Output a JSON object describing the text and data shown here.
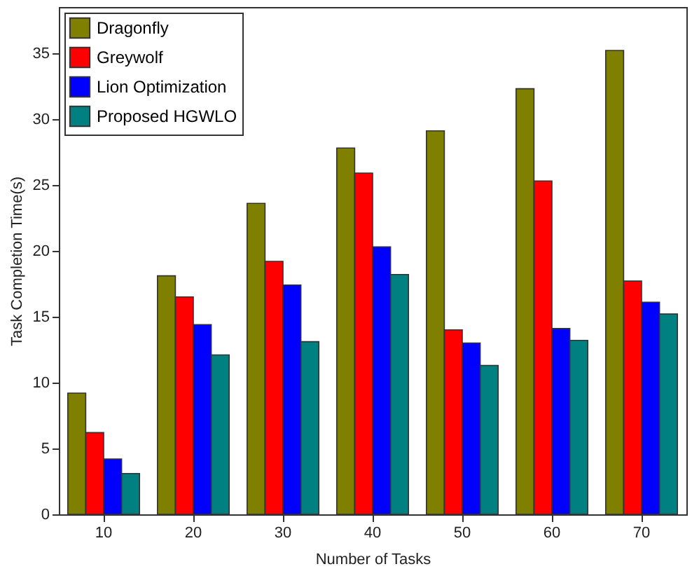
{
  "chart_data": {
    "type": "bar",
    "xlabel": "Number of Tasks",
    "ylabel": "Task Completion Time(s)",
    "categories": [
      "10",
      "20",
      "30",
      "40",
      "50",
      "60",
      "70"
    ],
    "series": [
      {
        "name": "Dragonfly",
        "color": "#808000",
        "values": [
          9.2,
          18.1,
          23.6,
          27.8,
          29.1,
          32.3,
          35.2
        ]
      },
      {
        "name": "Greywolf",
        "color": "#ff0000",
        "values": [
          6.2,
          16.5,
          19.2,
          25.9,
          14.0,
          25.3,
          17.7
        ]
      },
      {
        "name": "Lion Optimization",
        "color": "#0000ff",
        "values": [
          4.2,
          14.4,
          17.4,
          20.3,
          13.0,
          14.1,
          16.1
        ]
      },
      {
        "name": "Proposed HGWLO",
        "color": "#008080",
        "values": [
          3.1,
          12.1,
          13.1,
          18.2,
          11.3,
          13.2,
          15.2
        ]
      }
    ],
    "ylim": [
      0,
      38.5
    ],
    "yticks": [
      0,
      5,
      10,
      15,
      20,
      25,
      30,
      35
    ],
    "grid": false,
    "legend": "top left"
  }
}
